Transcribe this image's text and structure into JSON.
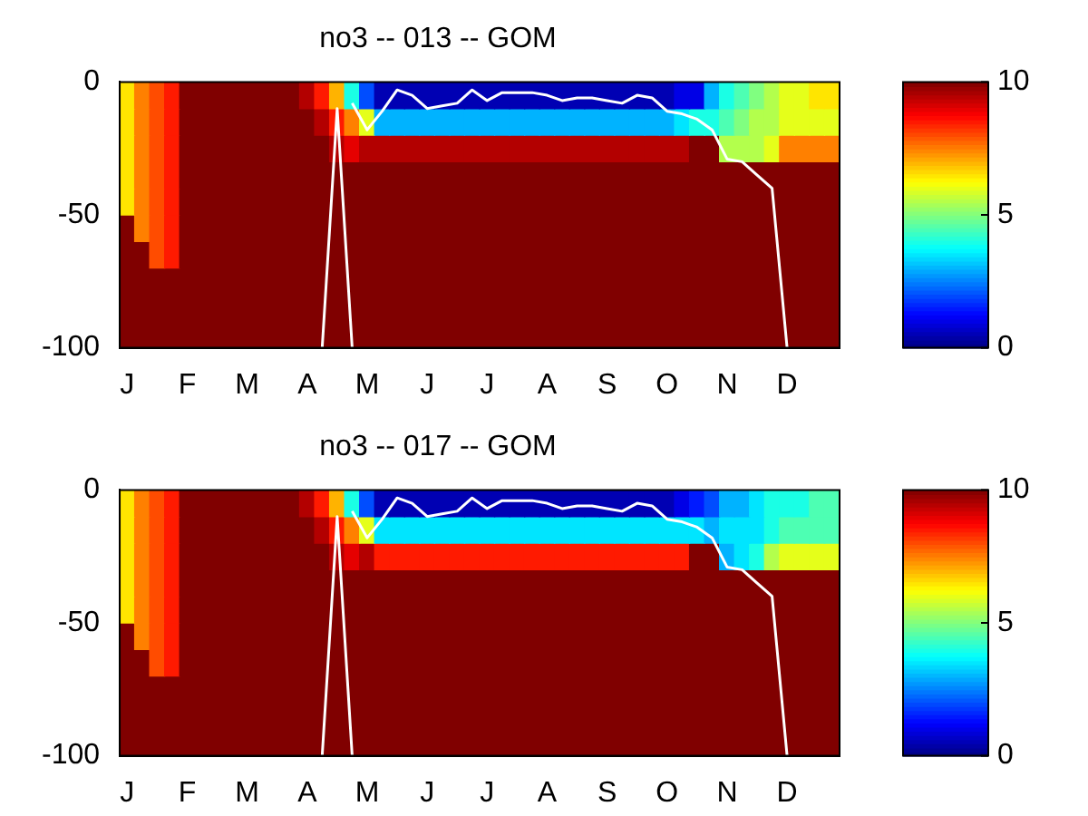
{
  "chart_data": [
    {
      "type": "heatmap",
      "title": "no3 -- 013 -- GOM",
      "categories": [
        "J",
        null,
        null,
        null,
        "F",
        null,
        null,
        null,
        "M",
        null,
        null,
        null,
        "A",
        null,
        null,
        null,
        "M",
        null,
        null,
        null,
        "J",
        null,
        null,
        null,
        "J",
        null,
        null,
        null,
        "A",
        null,
        null,
        null,
        "S",
        null,
        null,
        null,
        "O",
        null,
        null,
        null,
        "N",
        null,
        null,
        null,
        "D",
        null,
        null,
        null
      ],
      "ylim": [
        -100,
        0
      ],
      "yticks": [
        -100,
        -50,
        0
      ],
      "clim": [
        0,
        10
      ],
      "cticks": [
        0,
        5,
        10
      ],
      "cells": [
        [
          6.5,
          7.5,
          8,
          8.5,
          10,
          10,
          10,
          10,
          10,
          10,
          10,
          10,
          9.5,
          8.5,
          7,
          4,
          2,
          0.5,
          0.5,
          0.5,
          0.5,
          0.5,
          0.5,
          0.5,
          0.5,
          0.5,
          0.5,
          0.5,
          0.5,
          0.5,
          0.5,
          0.5,
          0.5,
          0.5,
          0.5,
          0.5,
          0.5,
          1,
          1,
          3,
          4,
          4.5,
          5,
          5.5,
          6,
          6,
          6.5,
          6.5
        ],
        [
          6.5,
          7.5,
          8,
          8.5,
          10,
          10,
          10,
          10,
          10,
          10,
          10,
          10,
          10,
          9.5,
          8.5,
          7.5,
          6,
          3,
          3,
          3,
          3,
          3,
          3,
          3,
          3,
          3,
          3,
          3,
          3,
          3,
          3,
          3,
          3,
          3,
          3,
          3,
          3,
          3.5,
          4,
          4,
          4.5,
          5,
          5.5,
          5.5,
          6,
          6,
          6,
          6
        ],
        [
          6.5,
          7.5,
          8,
          8.5,
          10,
          10,
          10,
          10,
          10,
          10,
          10,
          10,
          10,
          10,
          9.5,
          9,
          9.5,
          9.5,
          9.5,
          9.5,
          9.5,
          9.5,
          9.5,
          9.5,
          9.5,
          9.5,
          9.5,
          9.5,
          9.5,
          9.5,
          9.5,
          9.5,
          9.5,
          9.5,
          9.5,
          9.5,
          9.5,
          9.5,
          10,
          10,
          5.5,
          5.5,
          5.5,
          6,
          7.5,
          7.5,
          7.5,
          7.5
        ],
        [
          6.5,
          7.5,
          8,
          8.5,
          10,
          10,
          10,
          10,
          10,
          10,
          10,
          10,
          10,
          10,
          10,
          10,
          10,
          10,
          10,
          10,
          10,
          10,
          10,
          10,
          10,
          10,
          10,
          10,
          10,
          10,
          10,
          10,
          10,
          10,
          10,
          10,
          10,
          10,
          10,
          10,
          10,
          10,
          10,
          10,
          10,
          10,
          10,
          10
        ],
        [
          6.5,
          7.5,
          8,
          8.5,
          10,
          10,
          10,
          10,
          10,
          10,
          10,
          10,
          10,
          10,
          10,
          10,
          10,
          10,
          10,
          10,
          10,
          10,
          10,
          10,
          10,
          10,
          10,
          10,
          10,
          10,
          10,
          10,
          10,
          10,
          10,
          10,
          10,
          10,
          10,
          10,
          10,
          10,
          10,
          10,
          10,
          10,
          10,
          10
        ],
        [
          10,
          7.5,
          8,
          8.5,
          10,
          10,
          10,
          10,
          10,
          10,
          10,
          10,
          10,
          10,
          10,
          10,
          10,
          10,
          10,
          10,
          10,
          10,
          10,
          10,
          10,
          10,
          10,
          10,
          10,
          10,
          10,
          10,
          10,
          10,
          10,
          10,
          10,
          10,
          10,
          10,
          10,
          10,
          10,
          10,
          10,
          10,
          10,
          10
        ],
        [
          10,
          10,
          8,
          8.5,
          10,
          10,
          10,
          10,
          10,
          10,
          10,
          10,
          10,
          10,
          10,
          10,
          10,
          10,
          10,
          10,
          10,
          10,
          10,
          10,
          10,
          10,
          10,
          10,
          10,
          10,
          10,
          10,
          10,
          10,
          10,
          10,
          10,
          10,
          10,
          10,
          10,
          10,
          10,
          10,
          10,
          10,
          10,
          10
        ],
        [
          10,
          10,
          10,
          10,
          10,
          10,
          10,
          10,
          10,
          10,
          10,
          10,
          10,
          10,
          10,
          10,
          10,
          10,
          10,
          10,
          10,
          10,
          10,
          10,
          10,
          10,
          10,
          10,
          10,
          10,
          10,
          10,
          10,
          10,
          10,
          10,
          10,
          10,
          10,
          10,
          10,
          10,
          10,
          10,
          10,
          10,
          10,
          10
        ],
        [
          10,
          10,
          10,
          10,
          10,
          10,
          10,
          10,
          10,
          10,
          10,
          10,
          10,
          10,
          10,
          10,
          10,
          10,
          10,
          10,
          10,
          10,
          10,
          10,
          10,
          10,
          10,
          10,
          10,
          10,
          10,
          10,
          10,
          10,
          10,
          10,
          10,
          10,
          10,
          10,
          10,
          10,
          10,
          10,
          10,
          10,
          10,
          10
        ],
        [
          10,
          10,
          10,
          10,
          10,
          10,
          10,
          10,
          10,
          10,
          10,
          10,
          10,
          10,
          10,
          10,
          10,
          10,
          10,
          10,
          10,
          10,
          10,
          10,
          10,
          10,
          10,
          10,
          10,
          10,
          10,
          10,
          10,
          10,
          10,
          10,
          10,
          10,
          10,
          10,
          10,
          10,
          10,
          10,
          10,
          10,
          10,
          10
        ]
      ],
      "series": [
        {
          "type": "line",
          "color": "#ffffff",
          "values": [
            null,
            null,
            null,
            null,
            null,
            null,
            null,
            null,
            null,
            null,
            null,
            null,
            null,
            -100,
            -10,
            -100,
            null,
            null,
            null,
            null,
            null,
            null,
            null,
            null,
            null,
            null,
            null,
            null,
            null,
            null,
            null,
            null,
            null,
            null,
            null,
            null,
            null,
            null,
            null,
            null,
            null,
            null,
            null,
            null,
            null,
            null,
            null,
            null
          ]
        },
        {
          "type": "line",
          "color": "#ffffff",
          "values": [
            null,
            null,
            null,
            null,
            null,
            null,
            null,
            null,
            null,
            null,
            null,
            null,
            null,
            null,
            null,
            -8,
            -18,
            -11,
            -3,
            -5,
            -10,
            -9,
            -8,
            -3,
            -7,
            -4,
            -4,
            -4,
            -5,
            -7,
            -6,
            -6,
            -7,
            -8,
            -5,
            -6,
            -11,
            -12,
            -14,
            -18,
            -29,
            -30,
            -35,
            -40,
            -100,
            null,
            null,
            null
          ]
        }
      ]
    },
    {
      "type": "heatmap",
      "title": "no3 -- 017 -- GOM",
      "categories": [
        "J",
        null,
        null,
        null,
        "F",
        null,
        null,
        null,
        "M",
        null,
        null,
        null,
        "A",
        null,
        null,
        null,
        "M",
        null,
        null,
        null,
        "J",
        null,
        null,
        null,
        "J",
        null,
        null,
        null,
        "A",
        null,
        null,
        null,
        "S",
        null,
        null,
        null,
        "O",
        null,
        null,
        null,
        "N",
        null,
        null,
        null,
        "D",
        null,
        null,
        null
      ],
      "ylim": [
        -100,
        0
      ],
      "yticks": [
        -100,
        -50,
        0
      ],
      "clim": [
        0,
        10
      ],
      "cticks": [
        0,
        5,
        10
      ],
      "cells": [
        [
          6.5,
          7.5,
          8,
          8.5,
          10,
          10,
          10,
          10,
          10,
          10,
          10,
          10,
          9.5,
          8.5,
          7,
          4,
          2,
          0.5,
          0.5,
          0.5,
          0.5,
          0.5,
          0.5,
          0.5,
          0.5,
          0.5,
          0.5,
          0.5,
          0.5,
          0.5,
          0.5,
          0.5,
          0.5,
          0.5,
          0.5,
          0.5,
          0.5,
          1,
          1.5,
          2,
          3,
          3,
          3.5,
          4,
          4,
          4,
          4.5,
          4.5
        ],
        [
          6.5,
          7.5,
          8,
          8.5,
          10,
          10,
          10,
          10,
          10,
          10,
          10,
          10,
          10,
          9.5,
          8.5,
          7.5,
          6,
          3.5,
          3.5,
          3.5,
          3.5,
          3.5,
          3.5,
          3.5,
          3.5,
          3.5,
          3.5,
          3.5,
          3.5,
          3.5,
          3.5,
          3.5,
          3.5,
          3.5,
          3.5,
          3.5,
          3.5,
          3.5,
          3.5,
          3,
          3.5,
          3.5,
          3.5,
          4,
          4.5,
          4.5,
          4.5,
          4.5
        ],
        [
          6.5,
          7.5,
          8,
          8.5,
          10,
          10,
          10,
          10,
          10,
          10,
          10,
          10,
          10,
          10,
          9.5,
          9,
          9.5,
          8.5,
          8.5,
          8.5,
          8.5,
          8.5,
          8.5,
          8.5,
          8.5,
          8.5,
          8.5,
          8.5,
          8.5,
          8.5,
          8.5,
          8.5,
          8.5,
          8.5,
          8.5,
          8.5,
          8.5,
          8.5,
          10,
          10,
          3,
          3.5,
          4,
          5.5,
          6,
          6,
          6,
          6
        ],
        [
          6.5,
          7.5,
          8,
          8.5,
          10,
          10,
          10,
          10,
          10,
          10,
          10,
          10,
          10,
          10,
          10,
          10,
          10,
          10,
          10,
          10,
          10,
          10,
          10,
          10,
          10,
          10,
          10,
          10,
          10,
          10,
          10,
          10,
          10,
          10,
          10,
          10,
          10,
          10,
          10,
          10,
          10,
          10,
          10,
          10,
          10,
          10,
          10,
          10
        ],
        [
          6.5,
          7.5,
          8,
          8.5,
          10,
          10,
          10,
          10,
          10,
          10,
          10,
          10,
          10,
          10,
          10,
          10,
          10,
          10,
          10,
          10,
          10,
          10,
          10,
          10,
          10,
          10,
          10,
          10,
          10,
          10,
          10,
          10,
          10,
          10,
          10,
          10,
          10,
          10,
          10,
          10,
          10,
          10,
          10,
          10,
          10,
          10,
          10,
          10
        ],
        [
          10,
          7.5,
          8,
          8.5,
          10,
          10,
          10,
          10,
          10,
          10,
          10,
          10,
          10,
          10,
          10,
          10,
          10,
          10,
          10,
          10,
          10,
          10,
          10,
          10,
          10,
          10,
          10,
          10,
          10,
          10,
          10,
          10,
          10,
          10,
          10,
          10,
          10,
          10,
          10,
          10,
          10,
          10,
          10,
          10,
          10,
          10,
          10,
          10
        ],
        [
          10,
          10,
          8,
          8.5,
          10,
          10,
          10,
          10,
          10,
          10,
          10,
          10,
          10,
          10,
          10,
          10,
          10,
          10,
          10,
          10,
          10,
          10,
          10,
          10,
          10,
          10,
          10,
          10,
          10,
          10,
          10,
          10,
          10,
          10,
          10,
          10,
          10,
          10,
          10,
          10,
          10,
          10,
          10,
          10,
          10,
          10,
          10,
          10
        ],
        [
          10,
          10,
          10,
          10,
          10,
          10,
          10,
          10,
          10,
          10,
          10,
          10,
          10,
          10,
          10,
          10,
          10,
          10,
          10,
          10,
          10,
          10,
          10,
          10,
          10,
          10,
          10,
          10,
          10,
          10,
          10,
          10,
          10,
          10,
          10,
          10,
          10,
          10,
          10,
          10,
          10,
          10,
          10,
          10,
          10,
          10,
          10,
          10
        ],
        [
          10,
          10,
          10,
          10,
          10,
          10,
          10,
          10,
          10,
          10,
          10,
          10,
          10,
          10,
          10,
          10,
          10,
          10,
          10,
          10,
          10,
          10,
          10,
          10,
          10,
          10,
          10,
          10,
          10,
          10,
          10,
          10,
          10,
          10,
          10,
          10,
          10,
          10,
          10,
          10,
          10,
          10,
          10,
          10,
          10,
          10,
          10,
          10
        ],
        [
          10,
          10,
          10,
          10,
          10,
          10,
          10,
          10,
          10,
          10,
          10,
          10,
          10,
          10,
          10,
          10,
          10,
          10,
          10,
          10,
          10,
          10,
          10,
          10,
          10,
          10,
          10,
          10,
          10,
          10,
          10,
          10,
          10,
          10,
          10,
          10,
          10,
          10,
          10,
          10,
          10,
          10,
          10,
          10,
          10,
          10,
          10,
          10
        ]
      ],
      "series": [
        {
          "type": "line",
          "color": "#ffffff",
          "values": [
            null,
            null,
            null,
            null,
            null,
            null,
            null,
            null,
            null,
            null,
            null,
            null,
            null,
            -100,
            -10,
            -100,
            null,
            null,
            null,
            null,
            null,
            null,
            null,
            null,
            null,
            null,
            null,
            null,
            null,
            null,
            null,
            null,
            null,
            null,
            null,
            null,
            null,
            null,
            null,
            null,
            null,
            null,
            null,
            null,
            null,
            null,
            null,
            null
          ]
        },
        {
          "type": "line",
          "color": "#ffffff",
          "values": [
            null,
            null,
            null,
            null,
            null,
            null,
            null,
            null,
            null,
            null,
            null,
            null,
            null,
            null,
            null,
            -8,
            -18,
            -11,
            -3,
            -5,
            -10,
            -9,
            -8,
            -3,
            -7,
            -4,
            -4,
            -4,
            -5,
            -7,
            -6,
            -6,
            -7,
            -8,
            -5,
            -6,
            -11,
            -12,
            -14,
            -18,
            -29,
            -30,
            -35,
            -40,
            -100,
            null,
            null,
            null
          ]
        }
      ]
    }
  ]
}
